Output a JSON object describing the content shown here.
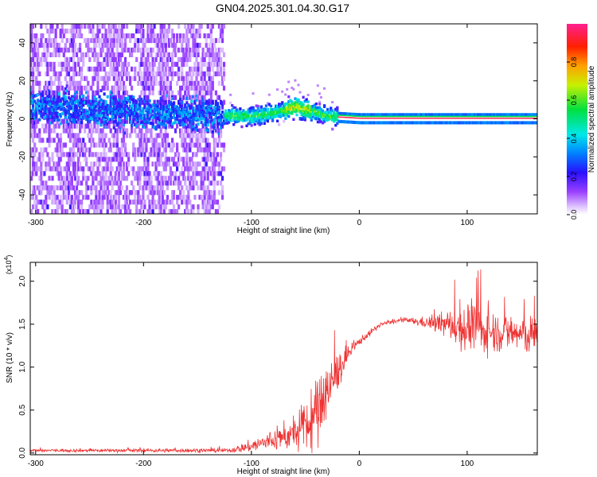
{
  "figure": {
    "title": "GN04.2025.301.04.30.G17"
  },
  "chart_data": [
    {
      "type": "heatmap",
      "xlabel": "Height of straight line (km)",
      "ylabel": "Frequency (Hz)",
      "xlim": [
        -305,
        165
      ],
      "ylim": [
        -50,
        50
      ],
      "x_ticks": [
        -300,
        -200,
        -100,
        0,
        100
      ],
      "y_ticks": [
        -40,
        -20,
        0,
        20,
        40
      ],
      "x_tick_labels": [
        "-300",
        "-200",
        "-100",
        "0",
        "100"
      ],
      "y_tick_labels": [
        "-40",
        "-20",
        "0",
        "20",
        "40"
      ],
      "colorbar": {
        "label": "Normalized spectral amplitude",
        "range": [
          0,
          1
        ],
        "ticks": [
          0.0,
          0.2,
          0.4,
          0.6,
          0.8
        ],
        "tick_labels": [
          "0.0",
          "0.2",
          "0.4",
          "0.6",
          "0.8"
        ]
      },
      "regions": [
        {
          "x_range": [
            -305,
            -125
          ],
          "description_amplitude": 0.1,
          "frequency_spread_hz": [
            -50,
            50
          ]
        },
        {
          "x_range": [
            -125,
            -20
          ],
          "description_amplitude": 0.35,
          "frequency_spread_hz": [
            -6,
            12
          ]
        },
        {
          "x_range": [
            -20,
            165
          ],
          "description_amplitude": 1.0,
          "frequency_spread_hz": [
            -1,
            1
          ]
        }
      ],
      "ridge": [
        {
          "x": -300,
          "f": 6
        },
        {
          "x": -250,
          "f": 4
        },
        {
          "x": -200,
          "f": 3
        },
        {
          "x": -150,
          "f": 2
        },
        {
          "x": -100,
          "f": 1
        },
        {
          "x": -80,
          "f": 3
        },
        {
          "x": -60,
          "f": 6
        },
        {
          "x": -45,
          "f": 4
        },
        {
          "x": -30,
          "f": 1
        },
        {
          "x": 0,
          "f": 0
        },
        {
          "x": 165,
          "f": 0
        }
      ]
    },
    {
      "type": "line",
      "xlabel": "Height of straight line (km)",
      "ylabel": "SNR (10 * v/v)",
      "y_multiplier_label": "(x10",
      "y_multiplier_exp": "4",
      "y_multiplier_close": ")",
      "xlim": [
        -305,
        165
      ],
      "ylim": [
        -0.02,
        2.22
      ],
      "x_ticks": [
        -300,
        -200,
        -100,
        0,
        100
      ],
      "y_ticks": [
        0.0,
        0.5,
        1.0,
        1.5,
        2.0
      ],
      "x_tick_labels": [
        "-300",
        "-200",
        "-100",
        "0",
        "100"
      ],
      "y_tick_labels": [
        "0.0",
        "0.5",
        "1.0",
        "1.5",
        "2.0"
      ],
      "color": "#ee3333",
      "envelope": [
        {
          "x": -305,
          "y": 0.03,
          "noise": 0.015
        },
        {
          "x": -120,
          "y": 0.03,
          "noise": 0.02
        },
        {
          "x": -100,
          "y": 0.08,
          "noise": 0.06
        },
        {
          "x": -80,
          "y": 0.15,
          "noise": 0.1
        },
        {
          "x": -60,
          "y": 0.22,
          "noise": 0.15
        },
        {
          "x": -45,
          "y": 0.35,
          "noise": 0.3
        },
        {
          "x": -35,
          "y": 0.55,
          "noise": 0.35
        },
        {
          "x": -25,
          "y": 0.85,
          "noise": 0.25
        },
        {
          "x": -10,
          "y": 1.15,
          "noise": 0.07
        },
        {
          "x": 0,
          "y": 1.3,
          "noise": 0.04
        },
        {
          "x": 20,
          "y": 1.5,
          "noise": 0.02
        },
        {
          "x": 40,
          "y": 1.55,
          "noise": 0.02
        },
        {
          "x": 60,
          "y": 1.52,
          "noise": 0.05
        },
        {
          "x": 80,
          "y": 1.5,
          "noise": 0.12
        },
        {
          "x": 100,
          "y": 1.45,
          "noise": 0.25
        },
        {
          "x": 120,
          "y": 1.42,
          "noise": 0.2
        },
        {
          "x": 140,
          "y": 1.4,
          "noise": 0.18
        },
        {
          "x": 165,
          "y": 1.35,
          "noise": 0.2
        }
      ]
    }
  ]
}
